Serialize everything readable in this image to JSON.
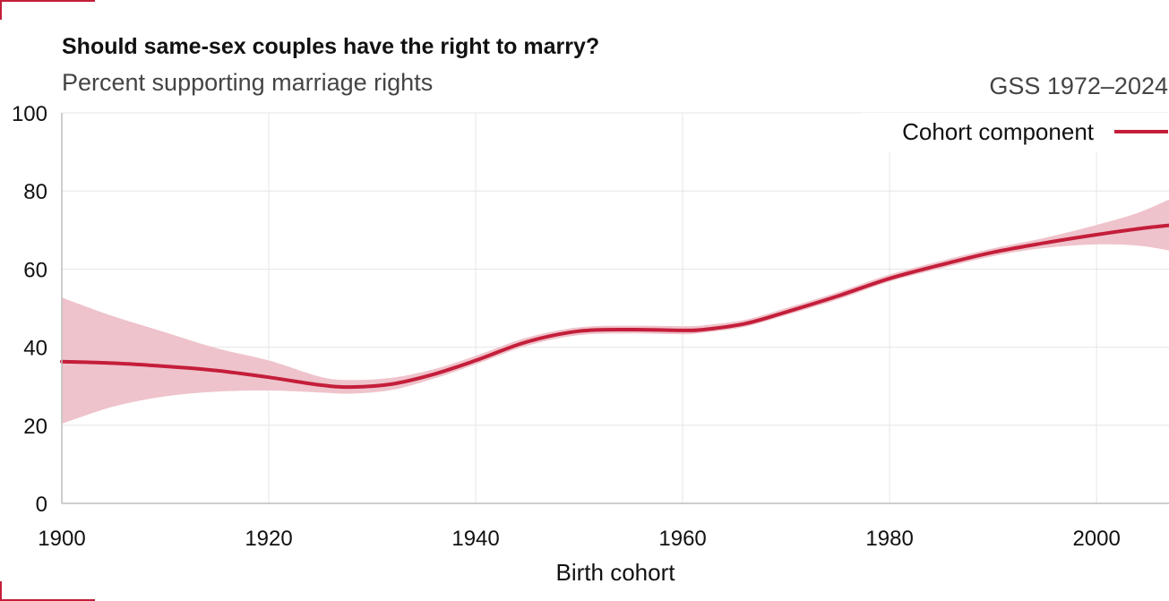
{
  "colors": {
    "accent": "#c41e3a",
    "band": "#efc3cb",
    "grid": "#e6e6e6",
    "axis": "#bdbdbd"
  },
  "chart_data": {
    "type": "line",
    "title": "Should same-sex couples have the right to marry?",
    "subtitle": "Percent supporting marriage rights",
    "source": "GSS 1972–2024",
    "xlabel": "Birth cohort",
    "ylabel": "",
    "xlim": [
      1900,
      2007
    ],
    "ylim": [
      0,
      100
    ],
    "x_ticks": [
      1900,
      1920,
      1940,
      1960,
      1980,
      2000
    ],
    "y_ticks": [
      0,
      20,
      40,
      60,
      80,
      100
    ],
    "grid": true,
    "legend_position": "top-right",
    "series": [
      {
        "name": "Cohort component",
        "x": [
          1900,
          1905,
          1910,
          1915,
          1920,
          1925,
          1928,
          1932,
          1936,
          1940,
          1945,
          1950,
          1955,
          1960,
          1962,
          1966,
          1970,
          1975,
          1980,
          1985,
          1990,
          1995,
          2000,
          2004,
          2007
        ],
        "y": [
          36.3,
          35.9,
          35.1,
          34.0,
          32.3,
          30.3,
          29.8,
          30.6,
          33.1,
          36.6,
          41.4,
          44.1,
          44.5,
          44.3,
          44.5,
          46.0,
          49.0,
          53.1,
          57.6,
          61.1,
          64.3,
          66.7,
          68.8,
          70.3,
          71.2
        ],
        "lower": [
          20.4,
          24.8,
          27.4,
          28.6,
          28.9,
          28.4,
          28.1,
          29.1,
          32.0,
          35.6,
          40.4,
          43.1,
          43.5,
          43.3,
          43.7,
          45.2,
          48.2,
          52.2,
          56.8,
          60.2,
          63.3,
          65.4,
          66.3,
          66.0,
          64.8
        ],
        "upper": [
          52.7,
          47.9,
          43.8,
          39.7,
          36.6,
          32.4,
          31.6,
          32.2,
          34.4,
          37.8,
          42.5,
          45.1,
          45.5,
          45.4,
          45.6,
          47.0,
          50.0,
          54.1,
          58.6,
          62.1,
          65.3,
          68.0,
          71.3,
          74.4,
          77.8
        ]
      }
    ]
  }
}
